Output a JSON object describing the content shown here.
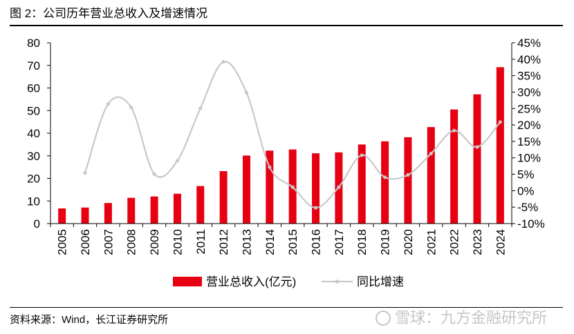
{
  "figure_title": "图 2：公司历年营业总收入及增速情况",
  "source_note": "资料来源：Wind，长江证券研究所",
  "watermark": "雪球：九方金融研究所",
  "colors": {
    "bar": "#e60012",
    "line": "#c8c8c8",
    "axis": "#000000"
  },
  "chart_data": {
    "type": "bar",
    "categories": [
      "2005",
      "2006",
      "2007",
      "2008",
      "2009",
      "2010",
      "2011",
      "2012",
      "2013",
      "2014",
      "2015",
      "2016",
      "2017",
      "2018",
      "2019",
      "2020",
      "2021",
      "2022",
      "2023",
      "2024"
    ],
    "series": [
      {
        "name": "营业总收入(亿元)",
        "type": "bar",
        "axis": "left",
        "values": [
          6.7,
          7.1,
          9.1,
          11.4,
          12.0,
          13.2,
          16.6,
          23.2,
          30.1,
          32.3,
          32.8,
          31.1,
          31.5,
          35.0,
          36.4,
          38.2,
          42.7,
          50.5,
          57.2,
          69.2
        ]
      },
      {
        "name": "同比增速",
        "type": "line",
        "axis": "right",
        "values": [
          null,
          5.4,
          26.4,
          25.3,
          5.1,
          9.1,
          25.1,
          39.2,
          29.8,
          7.2,
          1.1,
          -5.2,
          1.1,
          10.8,
          4.1,
          4.8,
          11.3,
          18.3,
          13.3,
          20.9
        ]
      }
    ],
    "y_left": {
      "min": 0,
      "max": 80,
      "ticks": [
        "0",
        "10",
        "20",
        "30",
        "40",
        "50",
        "60",
        "70",
        "80"
      ]
    },
    "y_right": {
      "min": -10,
      "max": 45,
      "ticks": [
        "-10%",
        "-5%",
        "0%",
        "5%",
        "10%",
        "15%",
        "20%",
        "25%",
        "30%",
        "35%",
        "40%",
        "45%"
      ]
    },
    "grid": false,
    "legend": "bottom-center"
  }
}
